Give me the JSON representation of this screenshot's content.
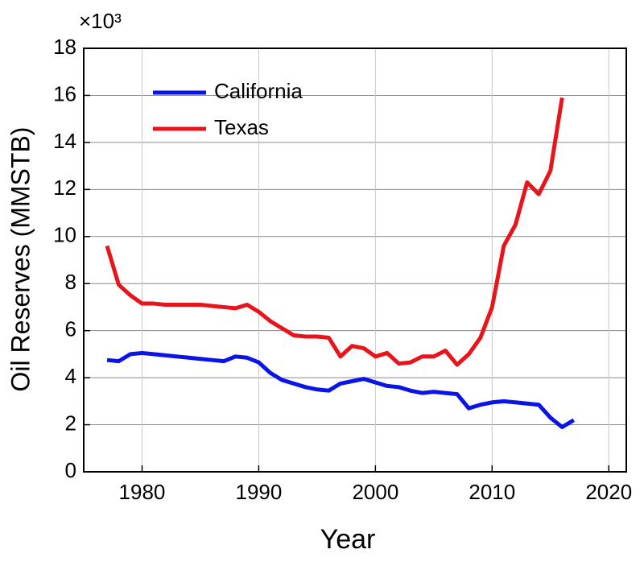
{
  "chart_data": {
    "type": "line",
    "x_label": "Year",
    "y_label": "Oil Reserves (MMSTB)",
    "y_multiplier": "×10³",
    "x": [
      1977,
      1978,
      1979,
      1980,
      1981,
      1982,
      1983,
      1984,
      1985,
      1986,
      1987,
      1988,
      1989,
      1990,
      1991,
      1992,
      1993,
      1994,
      1995,
      1996,
      1997,
      1998,
      1999,
      2000,
      2001,
      2002,
      2003,
      2004,
      2005,
      2006,
      2007,
      2008,
      2009,
      2010,
      2011,
      2012,
      2013,
      2014,
      2015,
      2016,
      2017
    ],
    "series": [
      {
        "name": "California",
        "color": "#0a14e6",
        "values": [
          4.75,
          4.7,
          5.0,
          5.05,
          5.0,
          4.95,
          4.9,
          4.85,
          4.8,
          4.75,
          4.7,
          4.9,
          4.85,
          4.65,
          4.2,
          3.9,
          3.75,
          3.6,
          3.5,
          3.45,
          3.75,
          3.85,
          3.95,
          3.8,
          3.65,
          3.6,
          3.45,
          3.35,
          3.4,
          3.35,
          3.3,
          2.7,
          2.85,
          2.95,
          3.0,
          2.95,
          2.9,
          2.85,
          2.3,
          1.9,
          2.2
        ]
      },
      {
        "name": "Texas",
        "color": "#e8141c",
        "values": [
          9.6,
          7.95,
          7.5,
          7.15,
          7.15,
          7.1,
          7.1,
          7.1,
          7.1,
          7.05,
          7.0,
          6.95,
          7.1,
          6.8,
          6.4,
          6.1,
          5.8,
          5.75,
          5.75,
          5.7,
          4.9,
          5.35,
          5.25,
          4.9,
          5.05,
          4.6,
          4.65,
          4.9,
          4.9,
          5.15,
          4.55,
          5.0,
          5.7,
          7.0,
          9.6,
          10.5,
          12.3,
          11.8,
          12.8,
          15.9,
          null
        ]
      }
    ],
    "xlim": [
      1975,
      2021.5
    ],
    "xticks": [
      1980,
      1990,
      2000,
      2010,
      2020
    ],
    "ylim": [
      0,
      18
    ],
    "yticks": [
      0,
      2,
      4,
      6,
      8,
      10,
      12,
      14,
      16,
      18
    ],
    "grid": true,
    "legend": "upper left"
  }
}
